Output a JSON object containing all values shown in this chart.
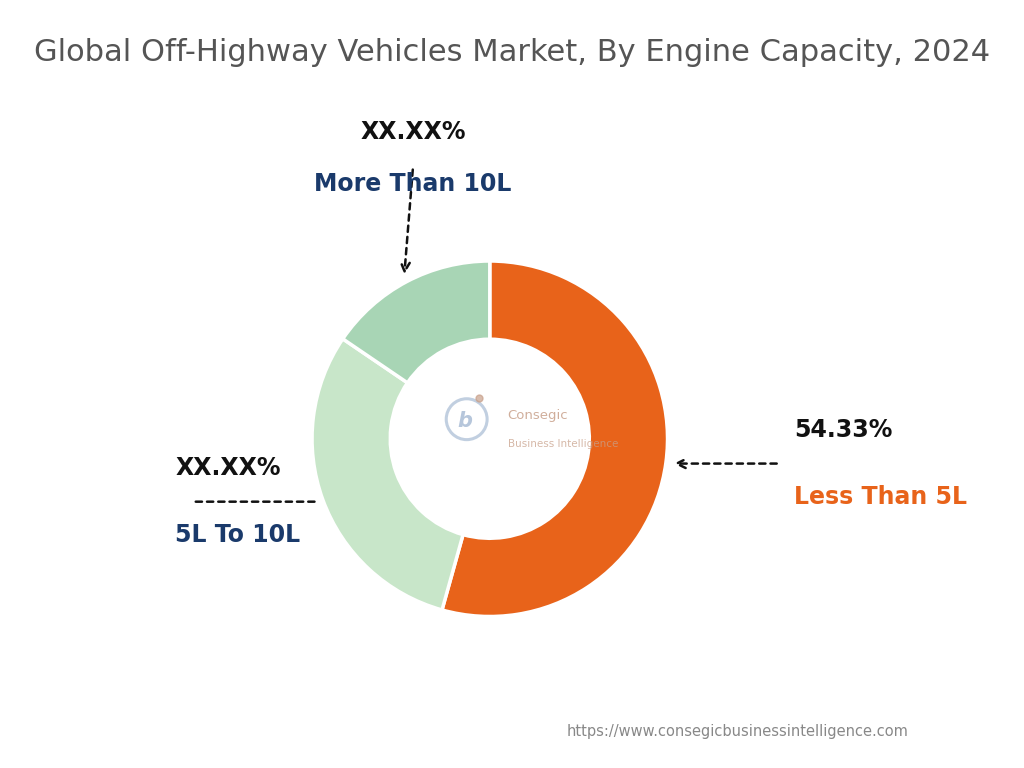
{
  "title": "Global Off-Highway Vehicles Market, By Engine Capacity, 2024",
  "slices": [
    {
      "label": "Less Than 5L",
      "pct_text": "54.33%",
      "value": 54.33,
      "color": "#E8631A",
      "label_color": "#E8631A"
    },
    {
      "label": "5L To 10L",
      "pct_text": "XX.XX%",
      "value": 30.17,
      "color": "#C8E6C9",
      "label_color": "#1A3A6B"
    },
    {
      "label": "More Than 10L",
      "pct_text": "XX.XX%",
      "value": 15.5,
      "color": "#A8D5B5",
      "label_color": "#1A3A6B"
    }
  ],
  "start_angle": 90,
  "donut_width": 0.44,
  "background_color": "#FFFFFF",
  "title_color": "#555555",
  "title_fontsize": 22,
  "pct_fontsize": 17,
  "label_fontsize": 17,
  "dot_color": "#111111",
  "website": "https://www.consegicbusinessintelligence.com",
  "center_logo_color": "#C8A08A",
  "center_b_color": "#8FA8C8",
  "center_text_color": "#C8A08A"
}
